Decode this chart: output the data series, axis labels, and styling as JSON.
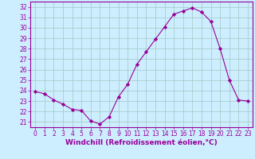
{
  "x": [
    0,
    1,
    2,
    3,
    4,
    5,
    6,
    7,
    8,
    9,
    10,
    11,
    12,
    13,
    14,
    15,
    16,
    17,
    18,
    19,
    20,
    21,
    22,
    23
  ],
  "y": [
    23.9,
    23.7,
    23.1,
    22.7,
    22.2,
    22.1,
    21.1,
    20.8,
    21.5,
    23.4,
    24.6,
    26.5,
    27.7,
    28.9,
    30.1,
    31.3,
    31.6,
    31.9,
    31.5,
    30.6,
    28.0,
    25.0,
    23.1,
    23.0
  ],
  "line_color": "#990099",
  "marker": "D",
  "marker_size": 2.2,
  "bg_color": "#cceeff",
  "grid_color": "#aacccc",
  "xlabel": "Windchill (Refroidissement éolien,°C)",
  "xlabel_color": "#990099",
  "ylim": [
    20.5,
    32.5
  ],
  "xlim": [
    -0.5,
    23.5
  ],
  "yticks": [
    21,
    22,
    23,
    24,
    25,
    26,
    27,
    28,
    29,
    30,
    31,
    32
  ],
  "xticks": [
    0,
    1,
    2,
    3,
    4,
    5,
    6,
    7,
    8,
    9,
    10,
    11,
    12,
    13,
    14,
    15,
    16,
    17,
    18,
    19,
    20,
    21,
    22,
    23
  ],
  "tick_label_color": "#990099",
  "tick_label_size": 5.5,
  "xlabel_size": 6.5
}
